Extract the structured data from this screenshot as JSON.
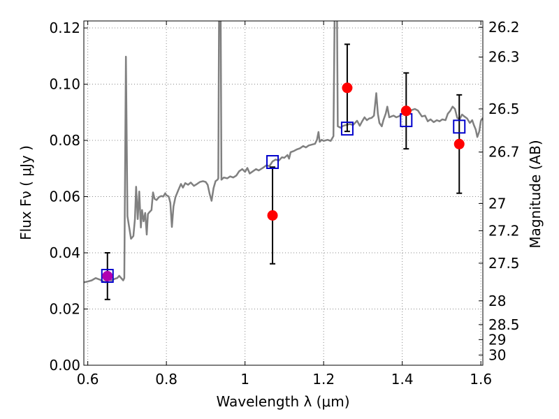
{
  "chart_data": {
    "type": "scatter",
    "xlabel": "Wavelength  λ (μm)",
    "ylabel": "Flux  Fν  ( μJy )",
    "ylabel_right": "Magnitude (AB)",
    "xlim": [
      0.59,
      1.605
    ],
    "ylim": [
      0.0,
      0.1225
    ],
    "grid": true,
    "x_ticks": [
      {
        "value": 0.6,
        "label": "0.6"
      },
      {
        "value": 0.8,
        "label": "0.8"
      },
      {
        "value": 1.0,
        "label": "1"
      },
      {
        "value": 1.2,
        "label": "1.2"
      },
      {
        "value": 1.4,
        "label": "1.4"
      },
      {
        "value": 1.6,
        "label": "1.6"
      }
    ],
    "y_ticks": [
      {
        "value": 0.0,
        "label": "0.00"
      },
      {
        "value": 0.02,
        "label": "0.02"
      },
      {
        "value": 0.04,
        "label": "0.04"
      },
      {
        "value": 0.06,
        "label": "0.06"
      },
      {
        "value": 0.08,
        "label": "0.08"
      },
      {
        "value": 0.1,
        "label": "0.10"
      },
      {
        "value": 0.12,
        "label": "0.12"
      }
    ],
    "right_ticks": [
      {
        "value": 26.2,
        "label": "26.2"
      },
      {
        "value": 26.3,
        "label": "26.3"
      },
      {
        "value": 26.5,
        "label": "26.5"
      },
      {
        "value": 26.7,
        "label": "26.7"
      },
      {
        "value": 27.0,
        "label": "27"
      },
      {
        "value": 27.2,
        "label": "27.2"
      },
      {
        "value": 27.5,
        "label": "27.5"
      },
      {
        "value": 28.0,
        "label": "28"
      },
      {
        "value": 28.5,
        "label": "28.5"
      },
      {
        "value": 29.0,
        "label": "29"
      },
      {
        "value": 30.0,
        "label": "30"
      }
    ],
    "template_spectrum": {
      "color": "#808080",
      "points": [
        [
          0.59,
          0.0295
        ],
        [
          0.6,
          0.0298
        ],
        [
          0.61,
          0.0302
        ],
        [
          0.62,
          0.031
        ],
        [
          0.63,
          0.0305
        ],
        [
          0.64,
          0.0298
        ],
        [
          0.645,
          0.0295
        ],
        [
          0.65,
          0.0305
        ],
        [
          0.66,
          0.0302
        ],
        [
          0.67,
          0.0308
        ],
        [
          0.675,
          0.031
        ],
        [
          0.68,
          0.0318
        ],
        [
          0.69,
          0.0302
        ],
        [
          0.693,
          0.031
        ],
        [
          0.697,
          0.1098
        ],
        [
          0.701,
          0.053
        ],
        [
          0.71,
          0.045
        ],
        [
          0.716,
          0.046
        ],
        [
          0.72,
          0.052
        ],
        [
          0.723,
          0.0635
        ],
        [
          0.727,
          0.052
        ],
        [
          0.731,
          0.0618
        ],
        [
          0.735,
          0.049
        ],
        [
          0.738,
          0.0552
        ],
        [
          0.742,
          0.0512
        ],
        [
          0.746,
          0.0542
        ],
        [
          0.75,
          0.0465
        ],
        [
          0.753,
          0.0538
        ],
        [
          0.757,
          0.0545
        ],
        [
          0.762,
          0.0552
        ],
        [
          0.766,
          0.0615
        ],
        [
          0.77,
          0.0592
        ],
        [
          0.775,
          0.0588
        ],
        [
          0.781,
          0.0598
        ],
        [
          0.787,
          0.0602
        ],
        [
          0.792,
          0.06
        ],
        [
          0.797,
          0.0612
        ],
        [
          0.8,
          0.0605
        ],
        [
          0.806,
          0.06
        ],
        [
          0.81,
          0.0578
        ],
        [
          0.814,
          0.0492
        ],
        [
          0.818,
          0.0565
        ],
        [
          0.823,
          0.0598
        ],
        [
          0.83,
          0.0622
        ],
        [
          0.837,
          0.0645
        ],
        [
          0.842,
          0.0632
        ],
        [
          0.848,
          0.0648
        ],
        [
          0.855,
          0.0642
        ],
        [
          0.862,
          0.065
        ],
        [
          0.87,
          0.0638
        ],
        [
          0.878,
          0.0645
        ],
        [
          0.885,
          0.0652
        ],
        [
          0.893,
          0.0655
        ],
        [
          0.9,
          0.0652
        ],
        [
          0.905,
          0.0642
        ],
        [
          0.91,
          0.061
        ],
        [
          0.915,
          0.0585
        ],
        [
          0.92,
          0.063
        ],
        [
          0.925,
          0.0655
        ],
        [
          0.93,
          0.066
        ],
        [
          0.932,
          0.0665
        ],
        [
          0.934,
          0.125
        ],
        [
          0.938,
          0.125
        ],
        [
          0.94,
          0.066
        ],
        [
          0.946,
          0.0668
        ],
        [
          0.955,
          0.0665
        ],
        [
          0.962,
          0.0672
        ],
        [
          0.97,
          0.0668
        ],
        [
          0.978,
          0.0675
        ],
        [
          0.985,
          0.069
        ],
        [
          0.993,
          0.0698
        ],
        [
          1.0,
          0.0688
        ],
        [
          1.006,
          0.0702
        ],
        [
          1.012,
          0.0682
        ],
        [
          1.02,
          0.069
        ],
        [
          1.028,
          0.0698
        ],
        [
          1.035,
          0.0693
        ],
        [
          1.045,
          0.0702
        ],
        [
          1.055,
          0.0712
        ],
        [
          1.062,
          0.0708
        ],
        [
          1.07,
          0.0725
        ],
        [
          1.078,
          0.0732
        ],
        [
          1.086,
          0.0728
        ],
        [
          1.094,
          0.074
        ],
        [
          1.1,
          0.0738
        ],
        [
          1.108,
          0.0748
        ],
        [
          1.112,
          0.0735
        ],
        [
          1.116,
          0.0758
        ],
        [
          1.124,
          0.0762
        ],
        [
          1.132,
          0.0768
        ],
        [
          1.14,
          0.0772
        ],
        [
          1.148,
          0.078
        ],
        [
          1.155,
          0.0775
        ],
        [
          1.162,
          0.0782
        ],
        [
          1.17,
          0.0785
        ],
        [
          1.178,
          0.0788
        ],
        [
          1.183,
          0.0802
        ],
        [
          1.187,
          0.083
        ],
        [
          1.19,
          0.0795
        ],
        [
          1.195,
          0.0802
        ],
        [
          1.2,
          0.0798
        ],
        [
          1.21,
          0.0802
        ],
        [
          1.218,
          0.0798
        ],
        [
          1.225,
          0.0815
        ],
        [
          1.228,
          0.125
        ],
        [
          1.234,
          0.125
        ],
        [
          1.236,
          0.085
        ],
        [
          1.243,
          0.0845
        ],
        [
          1.25,
          0.0852
        ],
        [
          1.258,
          0.0855
        ],
        [
          1.266,
          0.0858
        ],
        [
          1.275,
          0.0855
        ],
        [
          1.285,
          0.087
        ],
        [
          1.292,
          0.0852
        ],
        [
          1.298,
          0.0868
        ],
        [
          1.304,
          0.0882
        ],
        [
          1.31,
          0.0872
        ],
        [
          1.316,
          0.0878
        ],
        [
          1.322,
          0.088
        ],
        [
          1.328,
          0.0888
        ],
        [
          1.334,
          0.0968
        ],
        [
          1.338,
          0.0895
        ],
        [
          1.342,
          0.0862
        ],
        [
          1.348,
          0.085
        ],
        [
          1.352,
          0.0872
        ],
        [
          1.358,
          0.0895
        ],
        [
          1.362,
          0.092
        ],
        [
          1.367,
          0.0882
        ],
        [
          1.372,
          0.0885
        ],
        [
          1.378,
          0.0888
        ],
        [
          1.385,
          0.0882
        ],
        [
          1.392,
          0.0886
        ],
        [
          1.4,
          0.0895
        ],
        [
          1.408,
          0.09
        ],
        [
          1.416,
          0.0898
        ],
        [
          1.424,
          0.0908
        ],
        [
          1.432,
          0.0912
        ],
        [
          1.44,
          0.0906
        ],
        [
          1.45,
          0.0885
        ],
        [
          1.458,
          0.0888
        ],
        [
          1.465,
          0.0868
        ],
        [
          1.472,
          0.0875
        ],
        [
          1.48,
          0.0865
        ],
        [
          1.488,
          0.0872
        ],
        [
          1.495,
          0.0868
        ],
        [
          1.502,
          0.0875
        ],
        [
          1.51,
          0.0872
        ],
        [
          1.516,
          0.0895
        ],
        [
          1.522,
          0.0905
        ],
        [
          1.528,
          0.092
        ],
        [
          1.534,
          0.0912
        ],
        [
          1.54,
          0.088
        ],
        [
          1.546,
          0.0875
        ],
        [
          1.552,
          0.0892
        ],
        [
          1.558,
          0.0885
        ],
        [
          1.565,
          0.0878
        ],
        [
          1.572,
          0.0862
        ],
        [
          1.578,
          0.0872
        ],
        [
          1.582,
          0.0855
        ],
        [
          1.587,
          0.0838
        ],
        [
          1.591,
          0.0812
        ],
        [
          1.596,
          0.0832
        ],
        [
          1.6,
          0.087
        ],
        [
          1.605,
          0.088
        ]
      ]
    },
    "observed": [
      {
        "x": 0.65,
        "y": 0.0317,
        "err": 0.0083
      },
      {
        "x": 1.07,
        "y": 0.0533,
        "err": 0.0172
      },
      {
        "x": 1.26,
        "y": 0.0987,
        "err": 0.0155
      },
      {
        "x": 1.41,
        "y": 0.0905,
        "err": 0.0135
      },
      {
        "x": 1.545,
        "y": 0.0787,
        "err": 0.0175
      }
    ],
    "model": [
      {
        "x": 0.65,
        "y": 0.0318
      },
      {
        "x": 1.07,
        "y": 0.0723
      },
      {
        "x": 1.26,
        "y": 0.0842
      },
      {
        "x": 1.41,
        "y": 0.0872
      },
      {
        "x": 1.545,
        "y": 0.0849
      }
    ],
    "colors": {
      "observed": "#ff0000",
      "observed_overlap": "#b000b0",
      "model": "#0000cc",
      "errorbar": "#000000",
      "grid": "#888888"
    }
  }
}
